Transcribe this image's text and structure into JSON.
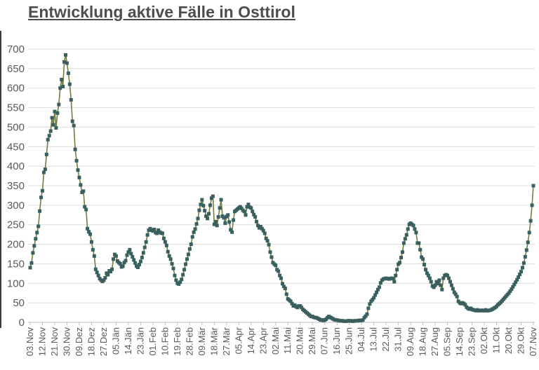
{
  "title": "Entwicklung aktive Fälle in Osttirol",
  "colors": {
    "line": "#6F7F3E",
    "marker": "#3A5F5F",
    "grid": "#DCDCDC",
    "axis": "#BFBFBF",
    "text": "#595959",
    "title_text": "#4D4D4D",
    "side_border": "#3A3A3A"
  },
  "chart_data": {
    "type": "line",
    "title": "Entwicklung aktive Fälle in Osttirol",
    "xlabel": "",
    "ylabel": "",
    "ylim": [
      0,
      700
    ],
    "y_ticks": [
      0,
      50,
      100,
      150,
      200,
      250,
      300,
      350,
      400,
      450,
      500,
      550,
      600,
      650,
      700
    ],
    "grid": "horizontal",
    "legend": "none",
    "marker": "square",
    "x_start_label": "03.Nov",
    "x_end_label": "07.Nov",
    "x_tick_interval_days": 9,
    "x_tick_labels": [
      "03.Nov",
      "12.Nov",
      "21.Nov",
      "30.Nov",
      "09.Dez",
      "18.Dez",
      "27.Dez",
      "05.Jän",
      "14.Jän",
      "23.Jän",
      "01.Feb",
      "10.Feb",
      "19.Feb",
      "28.Feb",
      "09.Mär",
      "18.Mär",
      "27.Mär",
      "05.Apr",
      "14.Apr",
      "23.Apr",
      "02.Mai",
      "11.Mai",
      "20.Mai",
      "29.Mai",
      "07.Jun",
      "16.Jun",
      "25.Jun",
      "04.Jul",
      "13.Jul",
      "22.Jul",
      "31.Jul",
      "09.Aug",
      "18.Aug",
      "27.Aug",
      "05.Sep",
      "14.Sep",
      "23.Sep",
      "02.Okt",
      "11.Okt",
      "20.Okt",
      "29.Okt",
      "07.Nov"
    ],
    "values": [
      140,
      152,
      178,
      196,
      214,
      230,
      246,
      285,
      320,
      337,
      384,
      392,
      430,
      468,
      478,
      490,
      524,
      506,
      540,
      498,
      536,
      558,
      600,
      622,
      604,
      667,
      685,
      664,
      638,
      610,
      570,
      515,
      504,
      443,
      414,
      390,
      371,
      352,
      333,
      336,
      296,
      289,
      240,
      232,
      226,
      206,
      186,
      170,
      136,
      128,
      120,
      112,
      108,
      105,
      108,
      114,
      126,
      122,
      132,
      130,
      136,
      162,
      174,
      170,
      157,
      153,
      150,
      142,
      144,
      153,
      158,
      172,
      180,
      186,
      176,
      168,
      160,
      152,
      144,
      141,
      148,
      156,
      166,
      178,
      192,
      206,
      224,
      236,
      240,
      236,
      234,
      238,
      230,
      228,
      236,
      231,
      229,
      228,
      215,
      206,
      197,
      181,
      170,
      162,
      150,
      138,
      120,
      108,
      100,
      98,
      103,
      110,
      122,
      135,
      149,
      162,
      174,
      188,
      200,
      219,
      231,
      239,
      252,
      266,
      287,
      302,
      314,
      299,
      286,
      272,
      266,
      278,
      300,
      318,
      323,
      251,
      258,
      248,
      270,
      293,
      314,
      272,
      268,
      254,
      271,
      275,
      257,
      237,
      231,
      262,
      284,
      287,
      290,
      293,
      296,
      292,
      287,
      284,
      275,
      296,
      302,
      295,
      293,
      284,
      276,
      270,
      258,
      248,
      242,
      245,
      240,
      235,
      228,
      215,
      209,
      199,
      180,
      167,
      153,
      149,
      146,
      135,
      131,
      120,
      113,
      99,
      92,
      87,
      72,
      60,
      57,
      54,
      48,
      42,
      44,
      40,
      38,
      42,
      42,
      38,
      33,
      30,
      27,
      24,
      21,
      18,
      15,
      15,
      13,
      12,
      12,
      10,
      8,
      6,
      6,
      5,
      6,
      8,
      12,
      15,
      13,
      11,
      9,
      7,
      6,
      6,
      5,
      4,
      4,
      4,
      3,
      3,
      3,
      4,
      4,
      4,
      3,
      3,
      4,
      4,
      4,
      5,
      5,
      5,
      6,
      12,
      16,
      21,
      36,
      47,
      54,
      58,
      63,
      70,
      77,
      84,
      90,
      101,
      108,
      111,
      112,
      113,
      112,
      111,
      112,
      113,
      112,
      104,
      120,
      135,
      149,
      153,
      166,
      180,
      203,
      214,
      224,
      239,
      251,
      254,
      251,
      248,
      239,
      230,
      203,
      203,
      186,
      167,
      162,
      148,
      135,
      126,
      120,
      113,
      104,
      93,
      90,
      95,
      104,
      99,
      108,
      95,
      84,
      113,
      120,
      122,
      120,
      113,
      104,
      95,
      86,
      77,
      72,
      66,
      54,
      50,
      48,
      50,
      48,
      45,
      39,
      36,
      34,
      36,
      33,
      32,
      31,
      30,
      32,
      30,
      30,
      31,
      30,
      30,
      32,
      30,
      30,
      31,
      32,
      34,
      36,
      38,
      41,
      45,
      48,
      51,
      55,
      59,
      63,
      67,
      71,
      75,
      80,
      85,
      91,
      97,
      103,
      109,
      116,
      123,
      130,
      140,
      152,
      168,
      185,
      205,
      230,
      260,
      300,
      350
    ]
  }
}
